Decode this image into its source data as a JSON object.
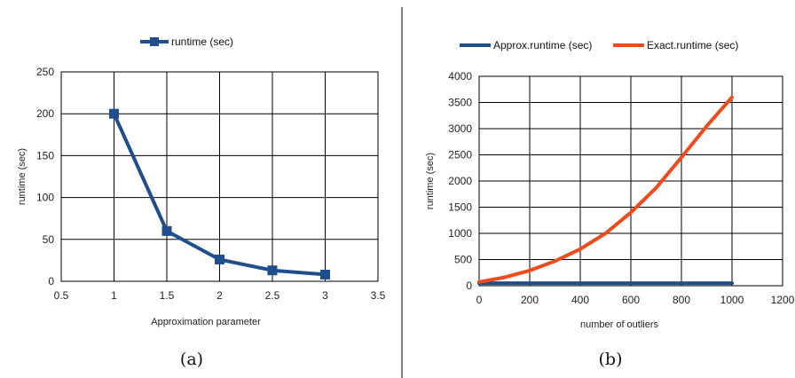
{
  "chart_data": [
    {
      "type": "line",
      "caption": "(a)",
      "xlabel": "Approximation parameter",
      "ylabel": "runtime (sec)",
      "xlim": [
        0.5,
        3.5
      ],
      "ylim": [
        0,
        250
      ],
      "xticks": [
        0.5,
        1,
        1.5,
        2,
        2.5,
        3,
        3.5
      ],
      "yticks": [
        0,
        50,
        100,
        150,
        200,
        250
      ],
      "xtick_labels": [
        "0.5",
        "1",
        "1.5",
        "2",
        "2.5",
        "3",
        "3.5"
      ],
      "ytick_labels": [
        "0",
        "50",
        "100",
        "150",
        "200",
        "250"
      ],
      "grid": true,
      "legend_position": "top",
      "series": [
        {
          "name": "runtime (sec)",
          "color": "#1f4e8c",
          "marker": "square",
          "x": [
            1,
            1.5,
            2,
            2.5,
            3
          ],
          "y": [
            200,
            60,
            26,
            13,
            8
          ]
        }
      ]
    },
    {
      "type": "line",
      "caption": "(b)",
      "xlabel": "number of outliers",
      "ylabel": "runtime (sec)",
      "xlim": [
        0,
        1200
      ],
      "ylim": [
        0,
        4000
      ],
      "xticks": [
        0,
        200,
        400,
        600,
        800,
        1000,
        1200
      ],
      "yticks": [
        0,
        500,
        1000,
        1500,
        2000,
        2500,
        3000,
        3500,
        4000
      ],
      "xtick_labels": [
        "0",
        "200",
        "400",
        "600",
        "800",
        "1000",
        "1200"
      ],
      "ytick_labels": [
        "0",
        "500",
        "1000",
        "1500",
        "2000",
        "2500",
        "3000",
        "3500",
        "4000"
      ],
      "grid": true,
      "legend_position": "top",
      "series": [
        {
          "name": "Approx.runtime (sec)",
          "color": "#1f4e8c",
          "marker": "none",
          "x": [
            0,
            100,
            200,
            300,
            400,
            500,
            600,
            700,
            800,
            900,
            1000
          ],
          "y": [
            50,
            50,
            50,
            50,
            50,
            50,
            50,
            50,
            50,
            50,
            50
          ]
        },
        {
          "name": "Exact.runtime (sec)",
          "color": "#f04a1a",
          "marker": "none",
          "x": [
            0,
            100,
            200,
            300,
            400,
            500,
            600,
            700,
            800,
            900,
            1000
          ],
          "y": [
            70,
            160,
            290,
            470,
            700,
            1000,
            1400,
            1870,
            2450,
            3050,
            3600
          ]
        }
      ]
    }
  ],
  "colors": {
    "divider": "#000000",
    "grid": "#000000"
  }
}
